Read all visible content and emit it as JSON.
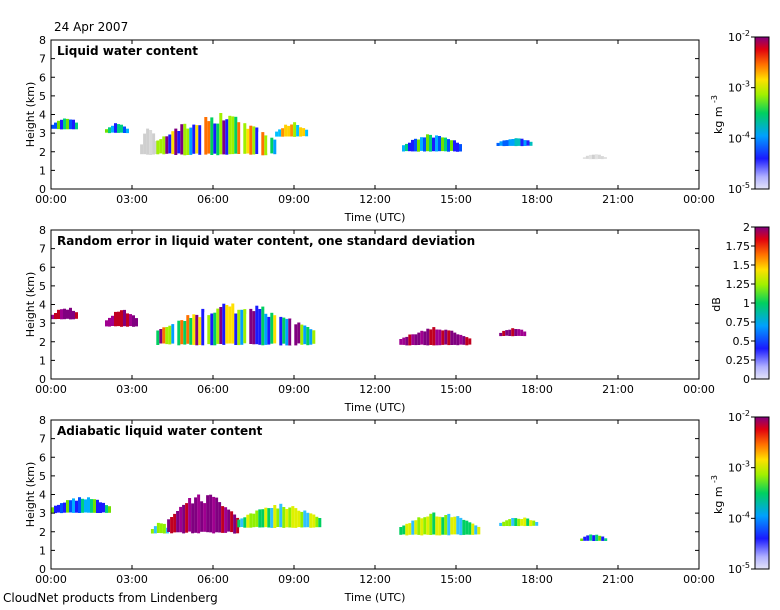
{
  "header": {
    "date": "24 Apr 2007"
  },
  "footer": {
    "credit": "CloudNet products from Lindenberg"
  },
  "chart_data": [
    {
      "type": "heatmap",
      "title": "Liquid water content",
      "xlabel": "Time (UTC)",
      "ylabel": "Height (km)",
      "xticks": [
        "00:00",
        "03:00",
        "06:00",
        "09:00",
        "12:00",
        "15:00",
        "18:00",
        "21:00",
        "00:00"
      ],
      "yticks": [
        "0",
        "1",
        "2",
        "3",
        "4",
        "5",
        "6",
        "7",
        "8"
      ],
      "xlim_hours": [
        0,
        24
      ],
      "ylim_km": [
        0,
        8
      ],
      "colorbar": {
        "label": "kg m",
        "label_superscript": "-3",
        "scale": "log",
        "ticks": [
          {
            "base": "10",
            "exp": "-2"
          },
          {
            "base": "10",
            "exp": "-3"
          },
          {
            "base": "10",
            "exp": "-4"
          },
          {
            "base": "10",
            "exp": "-5"
          }
        ]
      },
      "cloud_layers": [
        {
          "t_start": 0.0,
          "t_end": 1.0,
          "h_bottom": 3.2,
          "h_top": 3.9,
          "level": "low-mid"
        },
        {
          "t_start": 2.0,
          "t_end": 2.8,
          "h_bottom": 3.0,
          "h_top": 3.6,
          "level": "low-mid"
        },
        {
          "t_start": 3.3,
          "t_end": 3.9,
          "h_bottom": 1.8,
          "h_top": 3.5,
          "level": "none"
        },
        {
          "t_start": 3.9,
          "t_end": 8.3,
          "h_bottom": 1.8,
          "h_top": 4.1,
          "level": "mixed"
        },
        {
          "t_start": 8.3,
          "t_end": 9.5,
          "h_bottom": 2.8,
          "h_top": 3.6,
          "level": "mid-high"
        },
        {
          "t_start": 13.0,
          "t_end": 15.2,
          "h_bottom": 2.0,
          "h_top": 3.0,
          "level": "low-mid"
        },
        {
          "t_start": 16.5,
          "t_end": 17.8,
          "h_bottom": 2.3,
          "h_top": 2.8,
          "level": "low"
        },
        {
          "t_start": 19.7,
          "t_end": 20.5,
          "h_bottom": 1.6,
          "h_top": 1.9,
          "level": "none"
        }
      ]
    },
    {
      "type": "heatmap",
      "title": "Random error in liquid water content, one standard deviation",
      "xlabel": "Time (UTC)",
      "ylabel": "Height (km)",
      "xticks": [
        "00:00",
        "03:00",
        "06:00",
        "09:00",
        "12:00",
        "15:00",
        "18:00",
        "21:00",
        "00:00"
      ],
      "yticks": [
        "0",
        "1",
        "2",
        "3",
        "4",
        "5",
        "6",
        "7",
        "8"
      ],
      "xlim_hours": [
        0,
        24
      ],
      "ylim_km": [
        0,
        8
      ],
      "colorbar": {
        "label": "dB",
        "scale": "linear",
        "range": [
          0,
          2
        ],
        "ticks": [
          "2",
          "1.75",
          "1.5",
          "1.25",
          "1",
          "0.75",
          "0.5",
          "0.25",
          "0"
        ]
      },
      "cloud_layers": [
        {
          "t_start": 0.0,
          "t_end": 1.0,
          "h_bottom": 3.2,
          "h_top": 3.9,
          "level": "high"
        },
        {
          "t_start": 2.0,
          "t_end": 3.2,
          "h_bottom": 2.8,
          "h_top": 3.8,
          "level": "high"
        },
        {
          "t_start": 3.9,
          "t_end": 9.7,
          "h_bottom": 1.8,
          "h_top": 4.1,
          "level": "mixed"
        },
        {
          "t_start": 12.9,
          "t_end": 15.5,
          "h_bottom": 1.8,
          "h_top": 2.8,
          "level": "high"
        },
        {
          "t_start": 16.6,
          "t_end": 17.6,
          "h_bottom": 2.3,
          "h_top": 2.8,
          "level": "high"
        }
      ]
    },
    {
      "type": "heatmap",
      "title": "Adiabatic liquid water content",
      "xlabel": "Time (UTC)",
      "ylabel": "Height (km)",
      "xticks": [
        "00:00",
        "03:00",
        "06:00",
        "09:00",
        "12:00",
        "15:00",
        "18:00",
        "21:00",
        "00:00"
      ],
      "yticks": [
        "0",
        "1",
        "2",
        "3",
        "4",
        "5",
        "6",
        "7",
        "8"
      ],
      "xlim_hours": [
        0,
        24
      ],
      "ylim_km": [
        0,
        8
      ],
      "colorbar": {
        "label": "kg m",
        "label_superscript": "-3",
        "scale": "log",
        "ticks": [
          {
            "base": "10",
            "exp": "-2"
          },
          {
            "base": "10",
            "exp": "-3"
          },
          {
            "base": "10",
            "exp": "-4"
          },
          {
            "base": "10",
            "exp": "-5"
          }
        ]
      },
      "cloud_layers": [
        {
          "t_start": 0.0,
          "t_end": 2.2,
          "h_bottom": 3.0,
          "h_top": 3.9,
          "level": "low-mid"
        },
        {
          "t_start": 3.7,
          "t_end": 4.3,
          "h_bottom": 1.9,
          "h_top": 2.6,
          "level": "mid"
        },
        {
          "t_start": 4.3,
          "t_end": 6.9,
          "h_bottom": 1.9,
          "h_top": 4.1,
          "level": "high"
        },
        {
          "t_start": 6.9,
          "t_end": 10.0,
          "h_bottom": 2.2,
          "h_top": 3.5,
          "level": "mid"
        },
        {
          "t_start": 12.9,
          "t_end": 15.8,
          "h_bottom": 1.8,
          "h_top": 3.1,
          "level": "mid"
        },
        {
          "t_start": 16.6,
          "t_end": 18.0,
          "h_bottom": 2.3,
          "h_top": 2.8,
          "level": "mid"
        },
        {
          "t_start": 19.6,
          "t_end": 20.5,
          "h_bottom": 1.5,
          "h_top": 1.9,
          "level": "low-mid"
        }
      ]
    }
  ]
}
